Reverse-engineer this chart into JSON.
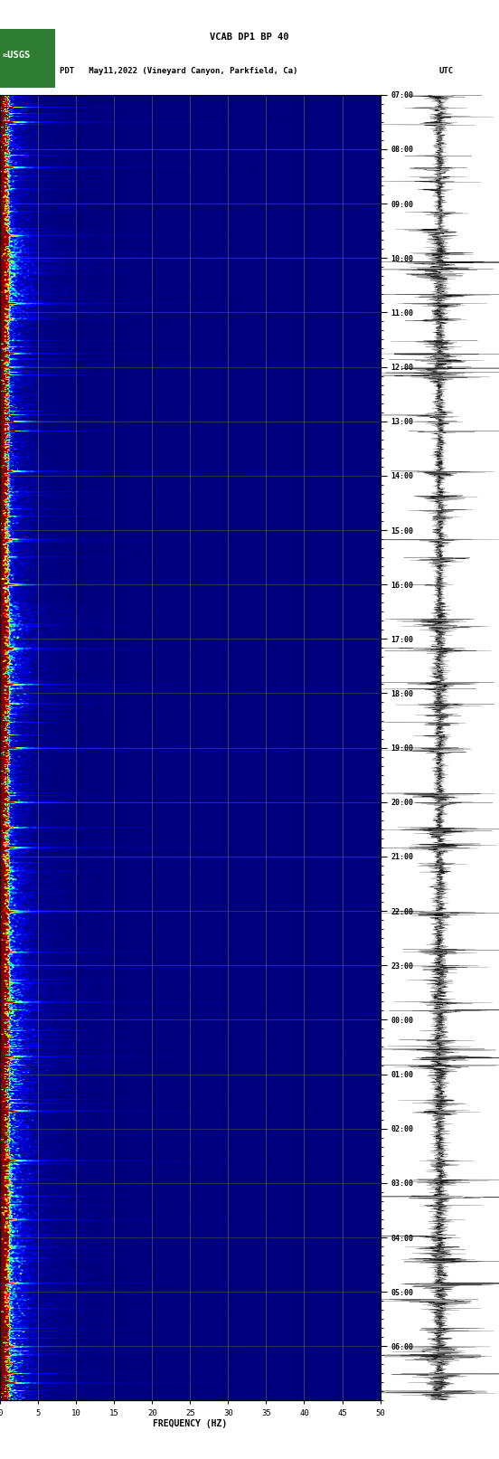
{
  "title_line1": "VCAB DP1 BP 40",
  "title_line2_left": "PDT   May11,2022 (Vineyard Canyon, Parkfield, Ca)",
  "title_line2_right": "UTC",
  "xlabel": "FREQUENCY (HZ)",
  "freq_min": 0,
  "freq_max": 50,
  "freq_ticks": [
    0,
    5,
    10,
    15,
    20,
    25,
    30,
    35,
    40,
    45,
    50
  ],
  "left_time_labels": [
    "00:00",
    "01:00",
    "02:00",
    "03:00",
    "04:00",
    "05:00",
    "06:00",
    "07:00",
    "08:00",
    "09:00",
    "10:00",
    "11:00",
    "12:00",
    "13:00",
    "14:00",
    "15:00",
    "16:00",
    "17:00",
    "18:00",
    "19:00",
    "20:00",
    "21:00",
    "22:00",
    "23:00"
  ],
  "right_time_labels": [
    "07:00",
    "08:00",
    "09:00",
    "10:00",
    "11:00",
    "12:00",
    "13:00",
    "14:00",
    "15:00",
    "16:00",
    "17:00",
    "18:00",
    "19:00",
    "20:00",
    "21:00",
    "22:00",
    "23:00",
    "00:00",
    "01:00",
    "02:00",
    "03:00",
    "04:00",
    "05:00",
    "06:00"
  ],
  "n_time_steps": 1440,
  "n_freq_steps": 250,
  "fig_bg": "#ffffff",
  "fig_width": 5.52,
  "fig_height": 16.13,
  "dpi": 100,
  "usgs_green": "#2e7d32",
  "grid_color": "#808040",
  "grid_freq_positions": [
    5,
    10,
    15,
    20,
    25,
    30,
    35,
    40,
    45
  ]
}
